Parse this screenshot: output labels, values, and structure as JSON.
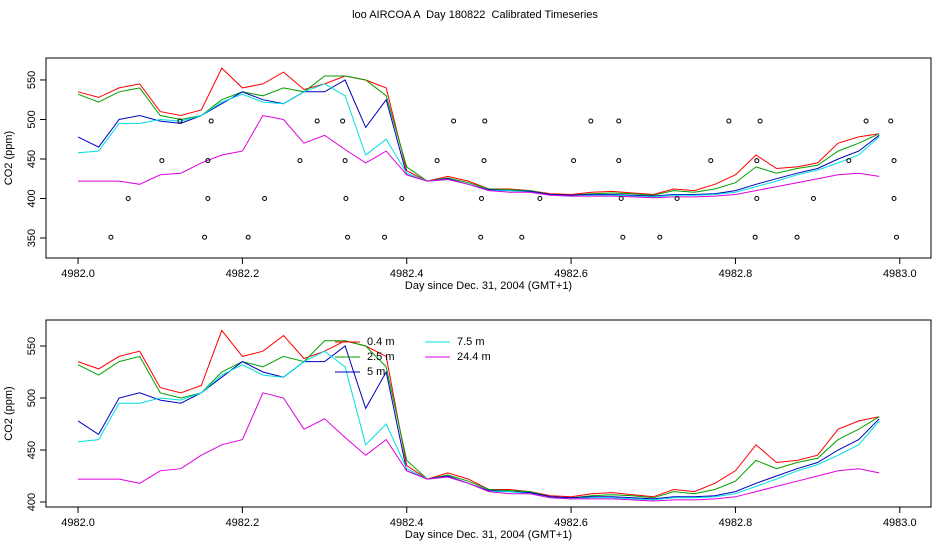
{
  "chart_data": [
    {
      "type": "line",
      "title": "loo AIRCOA A  Day 180822  Calibrated Timeseries",
      "xlabel": "Day since Dec. 31, 2004 (GMT+1)",
      "ylabel": "CO2 (ppm)",
      "xlim": [
        4981.961,
        4983.038
      ],
      "ylim": [
        324.7,
        577.8
      ],
      "xticks": [
        {
          "value": 4982.0,
          "label": "4982.0"
        },
        {
          "value": 4982.2,
          "label": "4982.2"
        },
        {
          "value": 4982.4,
          "label": "4982.4"
        },
        {
          "value": 4982.6,
          "label": "4982.6"
        },
        {
          "value": 4982.8,
          "label": "4982.8"
        },
        {
          "value": 4983.0,
          "label": "4983.0"
        }
      ],
      "yticks": [
        350,
        400,
        450,
        500,
        550
      ],
      "x": [
        4982,
        4982.025,
        4982.05,
        4982.075,
        4982.1,
        4982.125,
        4982.15,
        4982.175,
        4982.2,
        4982.225,
        4982.25,
        4982.275,
        4982.3,
        4982.325,
        4982.35,
        4982.375,
        4982.4,
        4982.425,
        4982.45,
        4982.475,
        4982.5,
        4982.525,
        4982.55,
        4982.575,
        4982.6,
        4982.625,
        4982.65,
        4982.675,
        4982.7,
        4982.725,
        4982.75,
        4982.775,
        4982.8,
        4982.825,
        4982.85,
        4982.875,
        4982.9,
        4982.925,
        4982.95,
        4982.975
      ],
      "series": [
        {
          "color": "#ff0000",
          "values": [
            535,
            528,
            540,
            545,
            510,
            505,
            512,
            565,
            540,
            545,
            560,
            538,
            545,
            555,
            550,
            540,
            435,
            422,
            428,
            422,
            412,
            412,
            410,
            406,
            405,
            408,
            409,
            407,
            405,
            412,
            410,
            418,
            430,
            455,
            438,
            440,
            445,
            470,
            478,
            482
          ]
        },
        {
          "color": "#00a000",
          "values": [
            532,
            522,
            535,
            540,
            505,
            500,
            505,
            525,
            535,
            530,
            540,
            535,
            555,
            555,
            550,
            530,
            440,
            422,
            426,
            420,
            412,
            411,
            410,
            405,
            404,
            406,
            407,
            406,
            404,
            410,
            408,
            412,
            420,
            440,
            432,
            438,
            442,
            460,
            470,
            482
          ]
        },
        {
          "color": "#0000c0",
          "values": [
            478,
            465,
            500,
            505,
            498,
            495,
            505,
            520,
            535,
            525,
            520,
            535,
            535,
            550,
            490,
            525,
            430,
            422,
            425,
            418,
            411,
            410,
            409,
            405,
            404,
            405,
            405,
            404,
            403,
            405,
            405,
            406,
            410,
            418,
            425,
            432,
            438,
            450,
            460,
            480
          ]
        },
        {
          "color": "#00e0e0",
          "values": [
            458,
            460,
            495,
            495,
            500,
            498,
            505,
            522,
            532,
            522,
            520,
            535,
            545,
            530,
            455,
            475,
            432,
            422,
            424,
            418,
            410,
            410,
            408,
            404,
            403,
            404,
            404,
            403,
            402,
            404,
            404,
            405,
            408,
            415,
            422,
            430,
            436,
            445,
            455,
            478
          ]
        },
        {
          "color": "#e000e0",
          "values": [
            422,
            422,
            422,
            418,
            430,
            432,
            445,
            455,
            460,
            505,
            500,
            470,
            480,
            462,
            445,
            460,
            430,
            422,
            424,
            418,
            410,
            408,
            408,
            404,
            403,
            403,
            403,
            402,
            401,
            402,
            402,
            403,
            405,
            410,
            415,
            420,
            425,
            430,
            432,
            428
          ]
        }
      ],
      "points": {
        "x": [
          4982.04,
          4982.061,
          4982.102,
          4982.124,
          4982.154,
          4982.158,
          4982.158,
          4982.162,
          4982.207,
          4982.227,
          4982.27,
          4982.291,
          4982.322,
          4982.325,
          4982.326,
          4982.328,
          4982.373,
          4982.394,
          4982.437,
          4982.457,
          4982.49,
          4982.491,
          4982.494,
          4982.495,
          4982.54,
          4982.562,
          4982.603,
          4982.624,
          4982.658,
          4982.658,
          4982.661,
          4982.663,
          4982.708,
          4982.729,
          4982.77,
          4982.792,
          4982.824,
          4982.826,
          4982.826,
          4982.83,
          4982.875,
          4982.895,
          4982.938,
          4982.959,
          4982.989,
          4982.993,
          4982.993,
          4982.996
        ],
        "y": [
          351,
          400,
          448,
          498,
          351,
          400,
          448,
          498,
          351,
          400,
          448,
          498,
          498,
          448,
          400,
          351,
          351,
          400,
          448,
          498,
          351,
          400,
          448,
          498,
          351,
          400,
          448,
          498,
          498,
          448,
          400,
          351,
          351,
          400,
          448,
          498,
          351,
          400,
          448,
          498,
          351,
          400,
          448,
          498,
          498,
          448,
          400,
          351
        ]
      }
    },
    {
      "type": "line",
      "xlabel": "Day since Dec. 31, 2004 (GMT+1)",
      "ylabel": "CO2 (ppm)",
      "xlim": [
        4981.961,
        4983.038
      ],
      "ylim": [
        395.2,
        575
      ],
      "xticks": [
        {
          "value": 4982.0,
          "label": "4982.0"
        },
        {
          "value": 4982.2,
          "label": "4982.2"
        },
        {
          "value": 4982.4,
          "label": "4982.4"
        },
        {
          "value": 4982.6,
          "label": "4982.6"
        },
        {
          "value": 4982.8,
          "label": "4982.8"
        },
        {
          "value": 4983.0,
          "label": "4983.0"
        }
      ],
      "yticks": [
        400,
        450,
        500,
        550
      ],
      "legend": "top",
      "x": [
        4982,
        4982.025,
        4982.05,
        4982.075,
        4982.1,
        4982.125,
        4982.15,
        4982.175,
        4982.2,
        4982.225,
        4982.25,
        4982.275,
        4982.3,
        4982.325,
        4982.35,
        4982.375,
        4982.4,
        4982.425,
        4982.45,
        4982.475,
        4982.5,
        4982.525,
        4982.55,
        4982.575,
        4982.6,
        4982.625,
        4982.65,
        4982.675,
        4982.7,
        4982.725,
        4982.75,
        4982.775,
        4982.8,
        4982.825,
        4982.85,
        4982.875,
        4982.9,
        4982.925,
        4982.95,
        4982.975
      ],
      "series": [
        {
          "name": "0.4 m",
          "color": "#ff0000",
          "values": [
            535,
            528,
            540,
            545,
            510,
            505,
            512,
            565,
            540,
            545,
            560,
            538,
            545,
            555,
            550,
            540,
            435,
            422,
            428,
            422,
            412,
            412,
            410,
            406,
            405,
            408,
            409,
            407,
            405,
            412,
            410,
            418,
            430,
            455,
            438,
            440,
            445,
            470,
            478,
            482
          ]
        },
        {
          "name": "2.5 m",
          "color": "#00a000",
          "values": [
            532,
            522,
            535,
            540,
            505,
            500,
            505,
            525,
            535,
            530,
            540,
            535,
            555,
            555,
            550,
            530,
            440,
            422,
            426,
            420,
            412,
            411,
            410,
            405,
            404,
            406,
            407,
            406,
            404,
            410,
            408,
            412,
            420,
            440,
            432,
            438,
            442,
            460,
            470,
            482
          ]
        },
        {
          "name": "5 m",
          "color": "#0000c0",
          "values": [
            478,
            465,
            500,
            505,
            498,
            495,
            505,
            520,
            535,
            525,
            520,
            535,
            535,
            550,
            490,
            525,
            430,
            422,
            425,
            418,
            411,
            410,
            409,
            405,
            404,
            405,
            405,
            404,
            403,
            405,
            405,
            406,
            410,
            418,
            425,
            432,
            438,
            450,
            460,
            480
          ]
        },
        {
          "name": "7.5 m",
          "color": "#00e0e0",
          "values": [
            458,
            460,
            495,
            495,
            500,
            498,
            505,
            522,
            532,
            522,
            520,
            535,
            545,
            530,
            455,
            475,
            432,
            422,
            424,
            418,
            410,
            410,
            408,
            404,
            403,
            404,
            404,
            403,
            402,
            404,
            404,
            405,
            408,
            415,
            422,
            430,
            436,
            445,
            455,
            478
          ]
        },
        {
          "name": "24.4 m",
          "color": "#e000e0",
          "values": [
            422,
            422,
            422,
            418,
            430,
            432,
            445,
            455,
            460,
            505,
            500,
            470,
            480,
            462,
            445,
            460,
            430,
            422,
            424,
            418,
            410,
            408,
            408,
            404,
            403,
            403,
            403,
            402,
            401,
            402,
            402,
            403,
            405,
            410,
            415,
            420,
            425,
            430,
            432,
            428
          ]
        }
      ]
    }
  ]
}
